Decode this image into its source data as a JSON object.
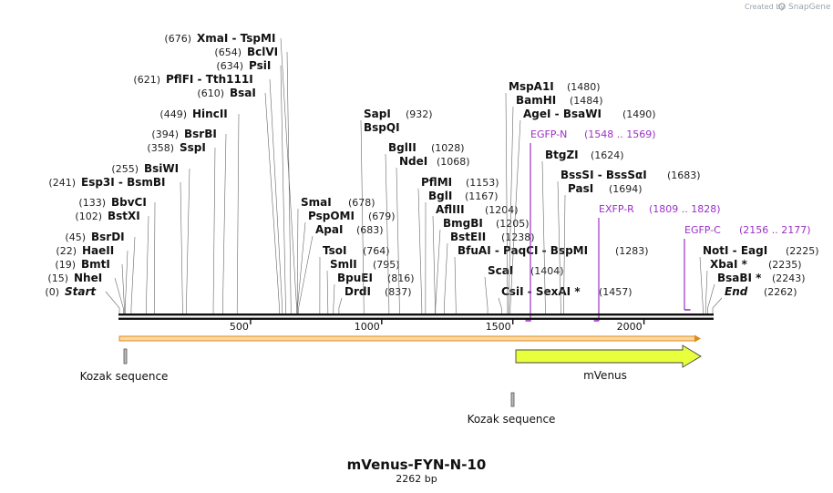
{
  "credit": {
    "prefix": "Created by",
    "brand": "SnapGene"
  },
  "title": "mVenus-FYN-N-10",
  "length_label": "2262 bp",
  "seq_length": 2262,
  "ruler_ticks": [
    {
      "label": "500",
      "bp": 500
    },
    {
      "label": "1000",
      "bp": 1000
    },
    {
      "label": "1500",
      "bp": 1500
    },
    {
      "label": "2000",
      "bp": 2000
    }
  ],
  "left_sites": [
    {
      "pos": "(676)",
      "names": [
        "XmaI",
        "TspMI"
      ],
      "bp": 676
    },
    {
      "pos": "(654)",
      "names": [
        "BclVI"
      ],
      "bp": 654
    },
    {
      "pos": "(634)",
      "names": [
        "PsiI"
      ],
      "bp": 634
    },
    {
      "pos": "(621)",
      "names": [
        "PflFI",
        "Tth111I"
      ],
      "bp": 621
    },
    {
      "pos": "(610)",
      "names": [
        "BsaI"
      ],
      "bp": 610
    },
    {
      "pos": "(449)",
      "names": [
        "HincII"
      ],
      "bp": 449
    },
    {
      "pos": "(394)",
      "names": [
        "BsrBI"
      ],
      "bp": 394
    },
    {
      "pos": "(358)",
      "names": [
        "SspI"
      ],
      "bp": 358
    },
    {
      "pos": "(255)",
      "names": [
        "BsiWI"
      ],
      "bp": 255
    },
    {
      "pos": "(241)",
      "names": [
        "Esp3I",
        "BsmBI"
      ],
      "bp": 241
    },
    {
      "pos": "(133)",
      "names": [
        "BbvCI"
      ],
      "bp": 133
    },
    {
      "pos": "(102)",
      "names": [
        "BstXI"
      ],
      "bp": 102
    },
    {
      "pos": "(45)",
      "names": [
        "BsrDI"
      ],
      "bp": 45
    },
    {
      "pos": "(22)",
      "names": [
        "HaeII"
      ],
      "bp": 22
    },
    {
      "pos": "(19)",
      "names": [
        "BmtI"
      ],
      "bp": 19
    },
    {
      "pos": "(15)",
      "names": [
        "NheI"
      ],
      "bp": 15
    },
    {
      "pos": "(0)",
      "names": [
        "Start"
      ],
      "bp": 0,
      "italic": true
    }
  ],
  "middle_sites": [
    {
      "names": [
        "SapI"
      ],
      "pos": "(932)",
      "bp": 932
    },
    {
      "names": [
        "BspQI"
      ],
      "pos": "",
      "bp": 932
    },
    {
      "names": [
        "BglII"
      ],
      "pos": "(1028)",
      "bp": 1028
    },
    {
      "names": [
        "NdeI"
      ],
      "pos": "(1068)",
      "bp": 1068
    },
    {
      "names": [
        "SmaI"
      ],
      "pos": "(678)",
      "bp": 678
    },
    {
      "names": [
        "PspOMI"
      ],
      "pos": "(679)",
      "bp": 679
    },
    {
      "names": [
        "ApaI"
      ],
      "pos": "(683)",
      "bp": 683
    },
    {
      "names": [
        "TsoI"
      ],
      "pos": "(764)",
      "bp": 764
    },
    {
      "names": [
        "SmlI"
      ],
      "pos": "(795)",
      "bp": 795
    },
    {
      "names": [
        "BpuEI"
      ],
      "pos": "(816)",
      "bp": 816
    },
    {
      "names": [
        "DrdI"
      ],
      "pos": "(837)",
      "bp": 837
    },
    {
      "names": [
        "PflMI"
      ],
      "pos": "(1153)",
      "bp": 1153
    },
    {
      "names": [
        "BglI"
      ],
      "pos": "(1167)",
      "bp": 1167
    },
    {
      "names": [
        "AflIII"
      ],
      "pos": "(1204)",
      "bp": 1204
    },
    {
      "names": [
        "BmgBI"
      ],
      "pos": "(1205)",
      "bp": 1205
    },
    {
      "names": [
        "BstEII"
      ],
      "pos": "(1238)",
      "bp": 1238
    },
    {
      "names": [
        "BfuAI",
        "PaqCI",
        "BspMI"
      ],
      "pos": "(1283)",
      "bp": 1283
    },
    {
      "names": [
        "ScaI"
      ],
      "pos": "(1404)",
      "bp": 1404
    },
    {
      "names": [
        "CsiI",
        "SexAI *"
      ],
      "pos": "(1457)",
      "bp": 1457
    }
  ],
  "right_sites": [
    {
      "names": [
        "MspA1I"
      ],
      "pos": "(1480)",
      "bp": 1480
    },
    {
      "names": [
        "BamHI"
      ],
      "pos": "(1484)",
      "bp": 1484
    },
    {
      "names": [
        "AgeI",
        "BsaWI"
      ],
      "pos": "(1490)",
      "bp": 1490
    },
    {
      "names": [
        "BtgZI"
      ],
      "pos": "(1624)",
      "bp": 1624
    },
    {
      "names": [
        "BssSI",
        "BssSαI"
      ],
      "pos": "(1683)",
      "bp": 1683
    },
    {
      "names": [
        "PasI"
      ],
      "pos": "(1694)",
      "bp": 1694
    },
    {
      "names": [
        "NotI",
        "EagI"
      ],
      "pos": "(2225)",
      "bp": 2225
    },
    {
      "names": [
        "XbaI *"
      ],
      "pos": "(2235)",
      "bp": 2235
    },
    {
      "names": [
        "BsaBI *"
      ],
      "pos": "(2243)",
      "bp": 2243
    },
    {
      "names": [
        "End"
      ],
      "pos": "(2262)",
      "bp": 2262,
      "italic": true
    }
  ],
  "primers": [
    {
      "name": "EGFP-N",
      "range": "(1548 .. 1569)",
      "start": 1548,
      "end": 1569,
      "color": "#9b30c8"
    },
    {
      "name": "EXFP-R",
      "range": "(1809 .. 1828)",
      "start": 1809,
      "end": 1828,
      "color": "#9b30c8"
    },
    {
      "name": "EGFP-C",
      "range": "(2156 .. 2177)",
      "start": 2156,
      "end": 2177,
      "color": "#9b30c8"
    }
  ],
  "features": [
    {
      "name": "Kozak sequence",
      "type": "misc",
      "start": 22,
      "end": 31,
      "color": "#bbbbbb"
    },
    {
      "name": "Kozak sequence",
      "type": "misc",
      "start": 1495,
      "end": 1504,
      "color": "#bbbbbb"
    },
    {
      "name": "mVenus",
      "type": "cds",
      "start": 1505,
      "end": 2224,
      "color": "#e8ff3c"
    }
  ],
  "colors": {
    "backbone": "#111111",
    "orf_stroke": "#e08a1e",
    "orf_fill": "#fbd8a0"
  }
}
